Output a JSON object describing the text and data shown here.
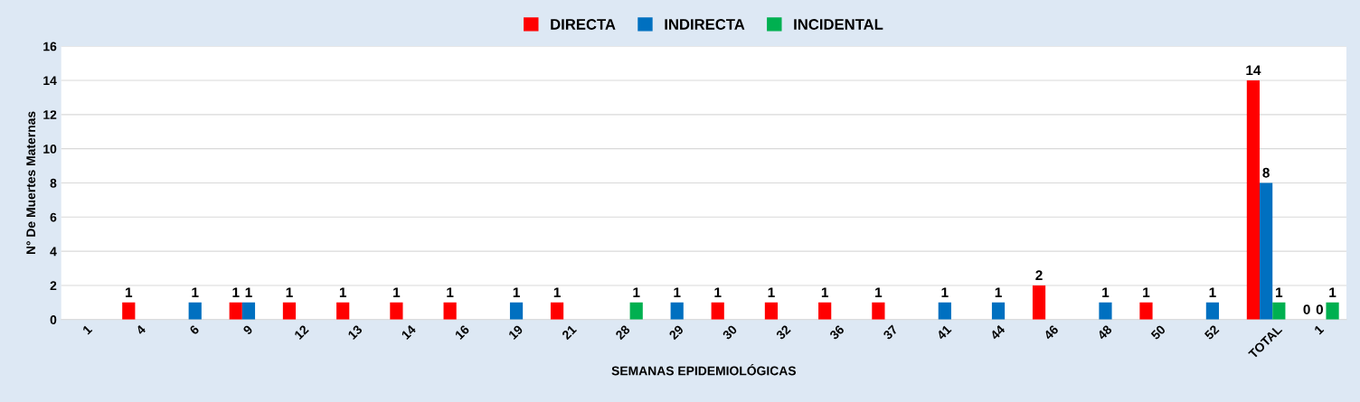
{
  "chart_data": {
    "type": "bar",
    "categories": [
      "1",
      "4",
      "6",
      "9",
      "12",
      "13",
      "14",
      "16",
      "19",
      "21",
      "28",
      "29",
      "30",
      "32",
      "36",
      "37",
      "41",
      "44",
      "46",
      "48",
      "50",
      "52",
      "TOTAL",
      "1"
    ],
    "xlabel": "SEMANAS EPIDEMIOLÓGICAS",
    "ylabel": "N° De Muertes Maternas",
    "ylim": [
      0,
      16
    ],
    "yticks": [
      0,
      2,
      4,
      6,
      8,
      10,
      12,
      14,
      16
    ],
    "grid": "y",
    "legend": "top",
    "series": [
      {
        "name": "DIRECTA",
        "color": "#ff0000",
        "values": [
          null,
          1,
          null,
          1,
          1,
          1,
          1,
          1,
          null,
          1,
          null,
          null,
          1,
          1,
          1,
          1,
          null,
          null,
          2,
          null,
          1,
          null,
          14,
          0
        ],
        "value_labels": [
          null,
          "1",
          null,
          "1",
          "1",
          "1",
          "1",
          "1",
          null,
          "1",
          null,
          null,
          "1",
          "1",
          "1",
          "1",
          null,
          null,
          "2",
          null,
          "1",
          null,
          "14",
          "0"
        ]
      },
      {
        "name": "INDIRECTA",
        "color": "#0070c0",
        "values": [
          null,
          null,
          1,
          1,
          null,
          null,
          null,
          null,
          1,
          null,
          null,
          1,
          null,
          null,
          null,
          null,
          1,
          1,
          null,
          1,
          null,
          1,
          8,
          0
        ],
        "value_labels": [
          null,
          null,
          "1",
          "1",
          null,
          null,
          null,
          null,
          "1",
          null,
          null,
          "1",
          null,
          null,
          null,
          null,
          "1",
          "1",
          null,
          "1",
          null,
          "1",
          "8",
          "0"
        ]
      },
      {
        "name": "INCIDENTAL",
        "color": "#00b050",
        "values": [
          null,
          null,
          null,
          null,
          null,
          null,
          null,
          null,
          null,
          null,
          1,
          null,
          null,
          null,
          null,
          null,
          null,
          null,
          null,
          null,
          null,
          null,
          1,
          1
        ],
        "value_labels": [
          null,
          null,
          null,
          null,
          null,
          null,
          null,
          null,
          null,
          null,
          "1",
          null,
          null,
          null,
          null,
          null,
          null,
          null,
          null,
          null,
          null,
          null,
          "1",
          "1"
        ]
      }
    ]
  }
}
